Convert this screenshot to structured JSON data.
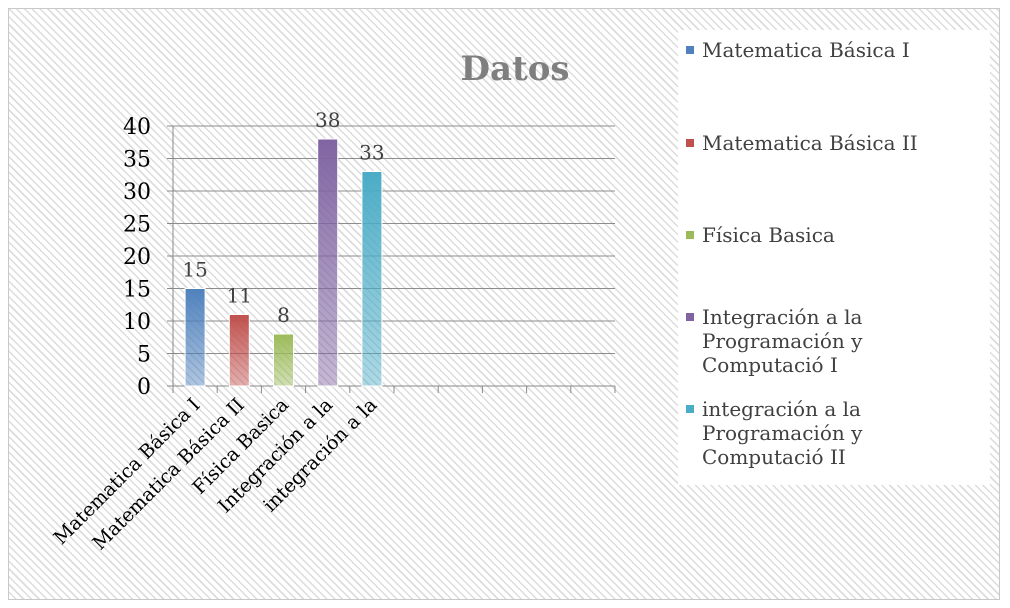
{
  "chart_data": {
    "type": "bar",
    "title": "Datos",
    "categories": [
      "Matematica Básica I",
      "Matematica Básica II",
      "Física Basica",
      "Integración a la",
      "integración a la",
      null,
      null,
      null,
      null,
      null
    ],
    "values": [
      15,
      11,
      8,
      38,
      33,
      null,
      null,
      null,
      null,
      null
    ],
    "legend": [
      "Matematica Básica I",
      "Matematica Básica II",
      "Física Basica",
      "Integración a la Programación y Computació I",
      "integración a la Programación y Computació II"
    ],
    "colors": [
      "#4f81bd",
      "#c0504d",
      "#9bbb59",
      "#8064a2",
      "#4bacc6"
    ],
    "ylim": [
      0,
      40
    ],
    "yticks": [
      0,
      5,
      10,
      15,
      20,
      25,
      30,
      35,
      40
    ],
    "grid": true
  }
}
